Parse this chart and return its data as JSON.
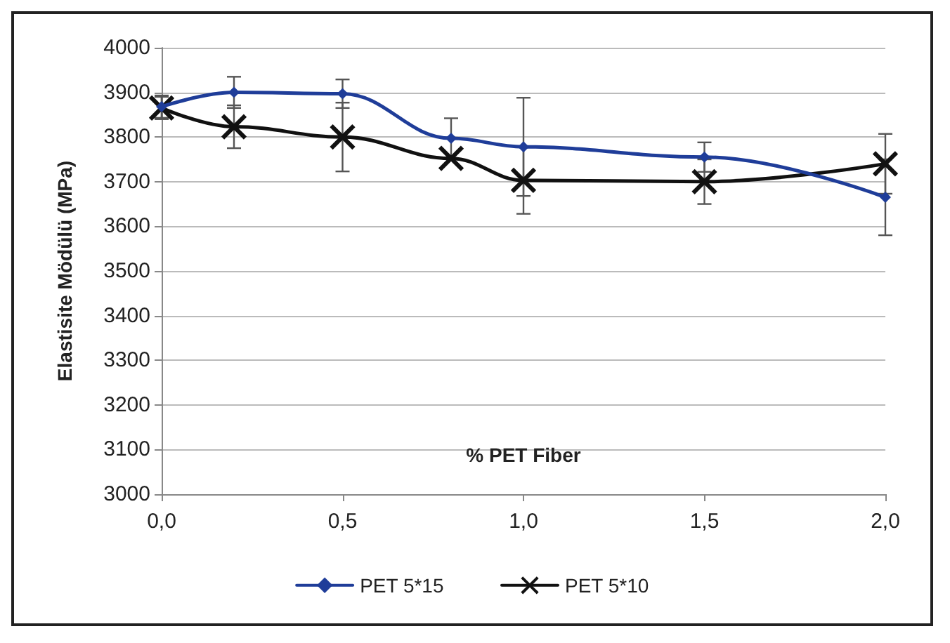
{
  "chart_data": {
    "type": "line",
    "xlabel": "% PET Fiber",
    "ylabel": "Elastisite Mödülü (MPa)",
    "x": [
      0,
      0.2,
      0.5,
      0.8,
      1.0,
      1.5,
      2.0
    ],
    "series": [
      {
        "name": "PET 5*15",
        "color": "#1f3d99",
        "marker": "diamond",
        "values": [
          3868,
          3900,
          3897,
          3797,
          3778,
          3755,
          3665
        ],
        "errors": [
          25,
          35,
          32,
          45,
          110,
          33,
          85
        ]
      },
      {
        "name": "PET 5*10",
        "color": "#111111",
        "marker": "cross",
        "values": [
          3865,
          3823,
          3800,
          3752,
          3703,
          3700,
          3740
        ],
        "errors": [
          25,
          48,
          77,
          null,
          75,
          50,
          67
        ]
      }
    ],
    "xlim": [
      0,
      2
    ],
    "xticks": [
      {
        "value": 0,
        "label": "0,0"
      },
      {
        "value": 0.5,
        "label": "0,5"
      },
      {
        "value": 1,
        "label": "1,0"
      },
      {
        "value": 1.5,
        "label": "1,5"
      },
      {
        "value": 2,
        "label": "2,0"
      }
    ],
    "ylim": [
      3000,
      4000
    ],
    "yticks": [
      3000,
      3100,
      3200,
      3300,
      3400,
      3500,
      3600,
      3700,
      3800,
      3900,
      4000
    ],
    "grid": "y",
    "legend": "bottom"
  }
}
